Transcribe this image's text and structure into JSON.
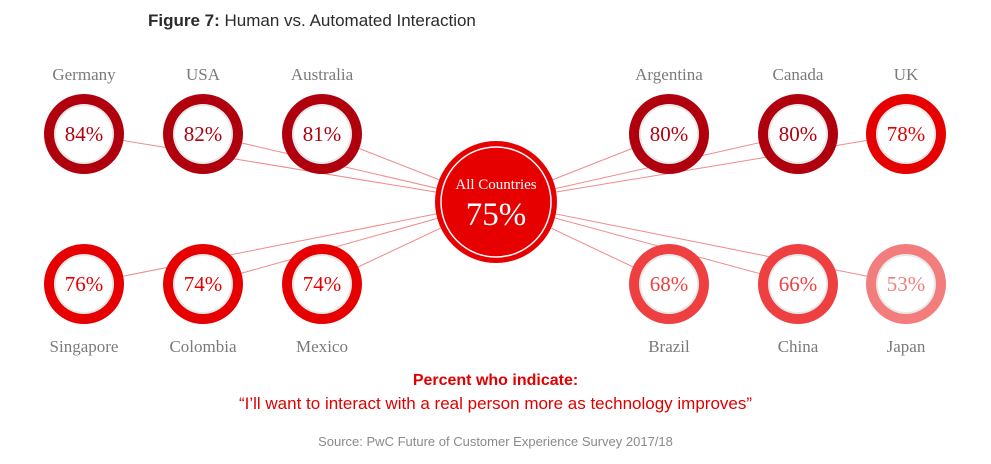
{
  "title": {
    "figure": "Figure 7:",
    "text": "Human vs. Automated Interaction"
  },
  "chart_data": {
    "type": "other",
    "center": {
      "label": "All Countries",
      "value": 75,
      "display": "75%"
    },
    "countries": [
      {
        "name": "Germany",
        "value": 84,
        "display": "84%",
        "color": "#b0000e"
      },
      {
        "name": "USA",
        "value": 82,
        "display": "82%",
        "color": "#b0000e"
      },
      {
        "name": "Australia",
        "value": 81,
        "display": "81%",
        "color": "#b0000e"
      },
      {
        "name": "Argentina",
        "value": 80,
        "display": "80%",
        "color": "#b0000e"
      },
      {
        "name": "Canada",
        "value": 80,
        "display": "80%",
        "color": "#b0000e"
      },
      {
        "name": "UK",
        "value": 78,
        "display": "78%",
        "color": "#e60000"
      },
      {
        "name": "Singapore",
        "value": 76,
        "display": "76%",
        "color": "#e60000"
      },
      {
        "name": "Colombia",
        "value": 74,
        "display": "74%",
        "color": "#e60000"
      },
      {
        "name": "Mexico",
        "value": 74,
        "display": "74%",
        "color": "#e60000"
      },
      {
        "name": "Brazil",
        "value": 68,
        "display": "68%",
        "color": "#ee4040"
      },
      {
        "name": "China",
        "value": 66,
        "display": "66%",
        "color": "#ee4040"
      },
      {
        "name": "Japan",
        "value": 53,
        "display": "53%",
        "color": "#f37d7d"
      }
    ]
  },
  "note": {
    "heading": "Percent who indicate:",
    "quote": "“I’ll want to interact with a real person more as technology improves”"
  },
  "source": "Source: PwC Future of Customer Experience Survey 2017/18",
  "colors": {
    "connector": "#f08a8a",
    "center": "#e60000",
    "country_label": "#7a7a7a"
  }
}
